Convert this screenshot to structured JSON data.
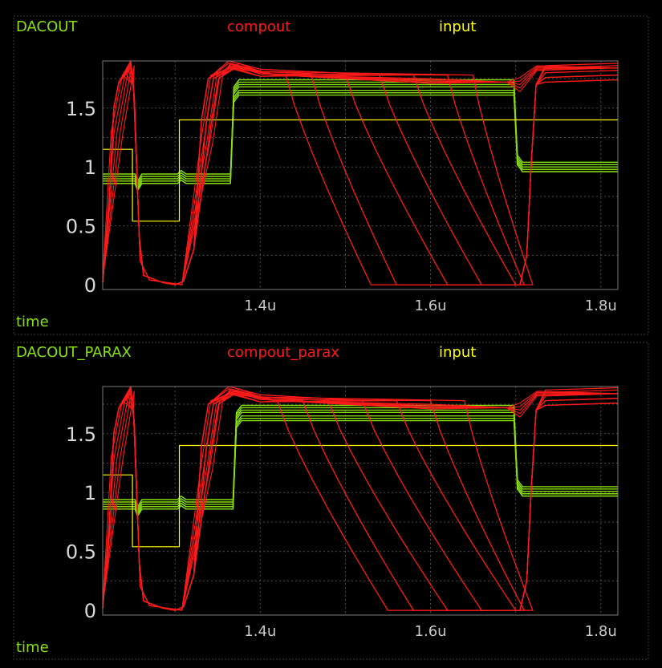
{
  "chart_data": [
    {
      "type": "line",
      "xlabel": "time",
      "xlim": [
        1.215,
        1.82
      ],
      "ylim": [
        -0.04,
        1.9
      ],
      "x_ticks": [
        {
          "value": 1.4,
          "label": "1.4u"
        },
        {
          "value": 1.6,
          "label": "1.6u"
        },
        {
          "value": 1.8,
          "label": "1.8u"
        }
      ],
      "y_ticks": [
        {
          "value": 0,
          "label": "0"
        },
        {
          "value": 0.5,
          "label": "0.5"
        },
        {
          "value": 1,
          "label": "1"
        },
        {
          "value": 1.5,
          "label": "1.5"
        }
      ],
      "x_grid": [
        1.3,
        1.4,
        1.5,
        1.6,
        1.7,
        1.8
      ],
      "y_grid": [
        0.25,
        0.5,
        0.75,
        1.0,
        1.25,
        1.5,
        1.75
      ],
      "legend": [
        {
          "name": "DACOUT",
          "color": "#88e010"
        },
        {
          "name": "compout",
          "color": "#ff1a1a"
        },
        {
          "name": "input",
          "color": "#ffff00"
        }
      ],
      "series": [
        {
          "name": "input",
          "color": "#ffff00",
          "points": [
            [
              1.215,
              1.15
            ],
            [
              1.25,
              1.15
            ],
            [
              1.25,
              0.54
            ],
            [
              1.305,
              0.54
            ],
            [
              1.305,
              1.4
            ],
            [
              1.82,
              1.4
            ]
          ]
        }
      ],
      "dac_sweep": {
        "name": "DACOUT",
        "color": "#88e010",
        "low_levels": [
          0.86,
          0.88,
          0.9,
          0.92,
          0.94
        ],
        "high_levels": [
          1.61,
          1.63,
          1.65,
          1.68,
          1.7,
          1.72,
          1.74
        ],
        "final_levels": [
          0.96,
          0.98,
          1.0,
          1.02,
          1.04
        ],
        "step_up": [
          1.253,
          1.303,
          1.365
        ],
        "step_down": [
          1.698
        ]
      },
      "comp_sweep": {
        "name": "compout",
        "color": "#ff1a1a",
        "peak_levels": [
          1.84,
          1.86,
          1.88,
          1.9
        ],
        "rise_times": [
          1.333,
          1.339,
          1.345
        ],
        "fall_start": [
          1.43,
          1.46,
          1.5,
          1.54,
          1.58,
          1.62,
          1.65
        ],
        "fall_end": [
          1.53,
          1.56,
          1.62,
          1.66,
          1.7,
          1.71,
          1.72
        ],
        "end_levels": [
          1.72,
          1.76,
          1.8,
          1.84,
          1.86
        ]
      }
    },
    {
      "type": "line",
      "xlabel": "time",
      "xlim": [
        1.215,
        1.82
      ],
      "ylim": [
        -0.04,
        1.9
      ],
      "x_ticks": [
        {
          "value": 1.4,
          "label": "1.4u"
        },
        {
          "value": 1.6,
          "label": "1.6u"
        },
        {
          "value": 1.8,
          "label": "1.8u"
        }
      ],
      "y_ticks": [
        {
          "value": 0,
          "label": "0"
        },
        {
          "value": 0.5,
          "label": "0.5"
        },
        {
          "value": 1,
          "label": "1"
        },
        {
          "value": 1.5,
          "label": "1.5"
        }
      ],
      "x_grid": [
        1.3,
        1.4,
        1.5,
        1.6,
        1.7,
        1.8
      ],
      "y_grid": [
        0.25,
        0.5,
        0.75,
        1.0,
        1.25,
        1.5,
        1.75
      ],
      "legend": [
        {
          "name": "DACOUT_PARAX",
          "color": "#88e010"
        },
        {
          "name": "compout_parax",
          "color": "#ff1a1a"
        },
        {
          "name": "input",
          "color": "#ffff00"
        }
      ],
      "series": [
        {
          "name": "input",
          "color": "#ffff00",
          "points": [
            [
              1.215,
              1.15
            ],
            [
              1.25,
              1.15
            ],
            [
              1.25,
              0.54
            ],
            [
              1.305,
              0.54
            ],
            [
              1.305,
              1.4
            ],
            [
              1.82,
              1.4
            ]
          ]
        }
      ],
      "dac_sweep": {
        "name": "DACOUT_PARAX",
        "color": "#88e010",
        "low_levels": [
          0.86,
          0.88,
          0.9,
          0.92,
          0.94
        ],
        "high_levels": [
          1.61,
          1.63,
          1.65,
          1.68,
          1.7,
          1.72,
          1.74
        ],
        "final_levels": [
          0.97,
          0.99,
          1.01,
          1.03,
          1.05
        ],
        "step_up": [
          1.253,
          1.303,
          1.368
        ],
        "step_down": [
          1.698
        ]
      },
      "comp_sweep": {
        "name": "compout_parax",
        "color": "#ff1a1a",
        "peak_levels": [
          1.84,
          1.86,
          1.88,
          1.9
        ],
        "rise_times": [
          1.333,
          1.339,
          1.345
        ],
        "fall_start": [
          1.42,
          1.45,
          1.48,
          1.52,
          1.56,
          1.6,
          1.64
        ],
        "fall_end": [
          1.55,
          1.58,
          1.62,
          1.66,
          1.7,
          1.71,
          1.72
        ],
        "end_levels": [
          1.74,
          1.78,
          1.82,
          1.85,
          1.87
        ]
      }
    }
  ]
}
